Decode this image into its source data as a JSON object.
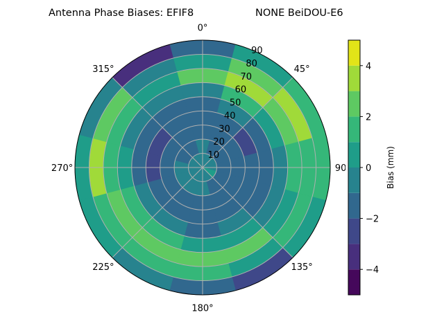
{
  "chart_data": {
    "type": "heatmap",
    "subtype": "polar-contour",
    "title_left": "Antenna Phase Biases: EFIF8",
    "title_right": "NONE BeiDOU-E6",
    "azimuth_labels": [
      "0°",
      "45°",
      "90°",
      "135°",
      "180°",
      "225°",
      "270°",
      "315°"
    ],
    "azimuth_label_angles": [
      0,
      45,
      90,
      135,
      180,
      225,
      270,
      315
    ],
    "radial_labels": [
      "10",
      "20",
      "30",
      "40",
      "50",
      "60",
      "70",
      "80",
      "90"
    ],
    "radial_ticks": [
      10,
      20,
      30,
      40,
      50,
      60,
      70,
      80,
      90
    ],
    "rlim": [
      0,
      90
    ],
    "theta_zero": "top",
    "theta_direction": "clockwise",
    "grid": true,
    "azimuths": [
      0,
      30,
      60,
      90,
      120,
      150,
      180,
      210,
      240,
      270,
      300,
      330
    ],
    "zenith_bins": [
      5,
      15,
      25,
      35,
      45,
      55,
      65,
      75,
      85
    ],
    "values": [
      [
        -0.5,
        -0.5,
        -1.5,
        -1.5,
        -1.5,
        -0.5,
        2.5,
        0.5,
        -1.5
      ],
      [
        -0.5,
        -1.5,
        -1.5,
        -1.5,
        -0.5,
        1.5,
        3.5,
        2.5,
        0.5
      ],
      [
        -0.5,
        -1.5,
        -1.5,
        -2.5,
        -1.5,
        0.5,
        2.5,
        3.5,
        1.5
      ],
      [
        -0.5,
        -1.5,
        -1.5,
        -1.5,
        -1.5,
        -0.5,
        1.5,
        1.5,
        1.5
      ],
      [
        0.5,
        -1.5,
        -1.5,
        -1.5,
        -1.5,
        -0.5,
        0.5,
        1.5,
        0.5
      ],
      [
        -0.5,
        -1.5,
        -1.5,
        -1.5,
        -0.5,
        0.5,
        2.5,
        0.5,
        -2.5
      ],
      [
        -0.5,
        -0.5,
        -1.5,
        -1.5,
        -1.5,
        0.5,
        2.5,
        1.5,
        -1.5
      ],
      [
        -0.5,
        -0.5,
        -1.5,
        -1.5,
        -0.5,
        1.5,
        2.5,
        1.5,
        -0.5
      ],
      [
        -0.5,
        -0.5,
        -1.5,
        -1.5,
        -0.5,
        1.5,
        2.5,
        1.5,
        0.5
      ],
      [
        -0.5,
        -0.5,
        -1.5,
        -2.5,
        -1.5,
        0.5,
        1.5,
        3.5,
        0.5
      ],
      [
        -0.5,
        -1.5,
        -1.5,
        -2.5,
        -1.5,
        -0.5,
        1.5,
        2.5,
        -0.5
      ],
      [
        -0.5,
        -1.5,
        -1.5,
        -1.5,
        -1.5,
        -0.5,
        0.5,
        -0.5,
        -3.5
      ]
    ],
    "levels": [
      -5,
      -4,
      -3,
      -2,
      -1,
      0,
      1,
      2,
      3,
      4,
      5
    ],
    "level_colors": [
      "#45085b",
      "#482f7d",
      "#3f4889",
      "#31688e",
      "#27838e",
      "#1f9d89",
      "#35b779",
      "#5ec962",
      "#a0da39",
      "#e2e418"
    ],
    "colorbar": {
      "label": "Bias (mm)",
      "ticks": [
        4,
        2,
        0,
        -2,
        -4
      ],
      "tick_labels": [
        "4",
        "2",
        "0",
        "−2",
        "−4"
      ],
      "range": [
        -5,
        5
      ]
    }
  }
}
